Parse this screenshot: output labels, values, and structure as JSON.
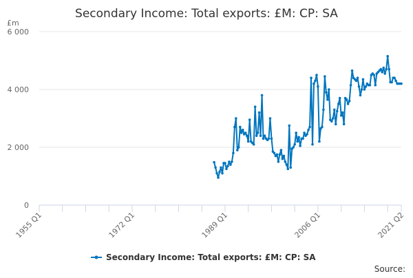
{
  "chart_data": {
    "type": "line",
    "title": "Secondary Income: Total exports: £M: CP: SA",
    "ylabel": "£m",
    "xlabel": "",
    "ylim": [
      0,
      6000
    ],
    "yticks": [
      0,
      2000,
      4000,
      6000
    ],
    "ytick_labels": [
      "0",
      "2 000",
      "4 000",
      "6 000"
    ],
    "xrange": [
      "1955 Q1",
      "2021 Q2"
    ],
    "xtick_labels": [
      "1955 Q1",
      "1972 Q1",
      "1989 Q1",
      "2006 Q1",
      "2021 Q2"
    ],
    "grid": true,
    "legend_position": "bottom",
    "series": [
      {
        "name": "Secondary Income: Total exports: £M: CP: SA",
        "color": "#0075be",
        "start": "1987 Q1",
        "frequency": "quarterly",
        "values": [
          1480,
          1300,
          1100,
          950,
          1150,
          1300,
          1100,
          1450,
          1450,
          1250,
          1350,
          1500,
          1400,
          1500,
          1800,
          2700,
          3000,
          1900,
          2000,
          2700,
          2500,
          2600,
          2450,
          2500,
          2400,
          2200,
          2950,
          2200,
          2150,
          2100,
          3400,
          2400,
          2500,
          3200,
          2400,
          3800,
          2300,
          2400,
          2300,
          2250,
          2300,
          3000,
          2300,
          1850,
          1800,
          1700,
          1750,
          1500,
          1750,
          1900,
          1600,
          1700,
          1500,
          1400,
          1250,
          2750,
          1300,
          1950,
          2000,
          2100,
          2500,
          2200,
          2350,
          2050,
          2300,
          2300,
          2500,
          2400,
          2450,
          2600,
          2700,
          4400,
          2100,
          4200,
          4300,
          4500,
          4100,
          2200,
          2650,
          2700,
          3300,
          4450,
          3900,
          3650,
          4000,
          2950,
          2900,
          3000,
          3300,
          2800,
          3250,
          3500,
          3700,
          3100,
          3200,
          2800,
          3700,
          3650,
          3500,
          3600,
          4150,
          4650,
          4400,
          4350,
          4300,
          4400,
          4100,
          3800,
          4000,
          4350,
          4000,
          4100,
          4200,
          4150,
          4150,
          4500,
          4550,
          4500,
          4150,
          4550,
          4600,
          4650,
          4700,
          4600,
          4750,
          4550,
          4700,
          5150,
          4700,
          4250,
          4250,
          4400,
          4400,
          4300,
          4200,
          4200,
          4200,
          4200
        ]
      }
    ]
  },
  "source_label": "Source:"
}
